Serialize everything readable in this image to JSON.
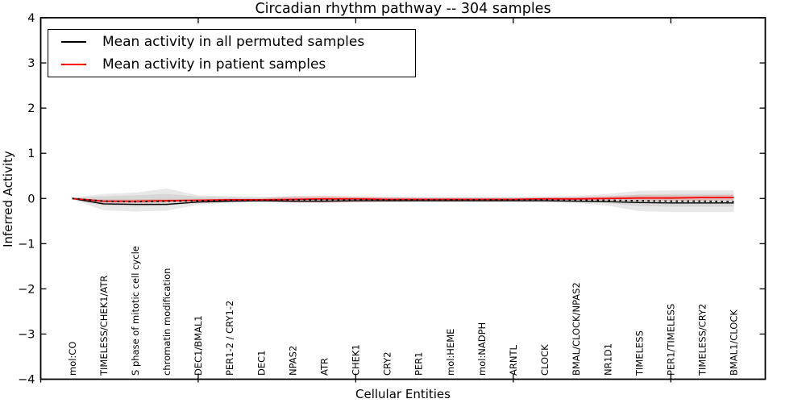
{
  "chart_data": {
    "type": "line",
    "title": "Circadian rhythm pathway -- 304 samples",
    "xlabel": "Cellular Entities",
    "ylabel": "Inferred Activity",
    "ylim": [
      -4,
      4
    ],
    "yticks": [
      4,
      3,
      2,
      1,
      0,
      -1,
      -2,
      -3,
      -4
    ],
    "xlim_indices": [
      -1,
      22
    ],
    "axis_tick_positions": [
      -1,
      4,
      9,
      14,
      19
    ],
    "grid": false,
    "legend_position": "upper left",
    "categories": [
      "mol:CO",
      "TIMELESS/CHEK1/ATR",
      "S phase of mitotic cell cycle",
      "chromatin modification",
      "DEC1/BMAL1",
      "PER1-2 / CRY1-2",
      "DEC1",
      "NPAS2",
      "ATR",
      "CHEK1",
      "CRY2",
      "PER1",
      "mol:HEME",
      "mol:NADPH",
      "ARNTL",
      "CLOCK",
      "BMAL/CLOCK/NPAS2",
      "NR1D1",
      "TIMELESS",
      "PER1/TIMELESS",
      "TIMELESS/CRY2",
      "BMAL1/CLOCK"
    ],
    "series": [
      {
        "name": "Mean activity in all permuted samples",
        "color": "#000000",
        "style": "solid",
        "in_legend": true,
        "values": [
          0.0,
          -0.12,
          -0.13,
          -0.13,
          -0.08,
          -0.06,
          -0.05,
          -0.06,
          -0.06,
          -0.05,
          -0.05,
          -0.05,
          -0.05,
          -0.05,
          -0.05,
          -0.05,
          -0.06,
          -0.07,
          -0.09,
          -0.1,
          -0.1,
          -0.1
        ]
      },
      {
        "name": "Mean activity in patient samples",
        "color": "#ff0000",
        "style": "solid",
        "in_legend": true,
        "values": [
          0.0,
          -0.06,
          -0.06,
          -0.05,
          -0.04,
          -0.03,
          -0.03,
          -0.02,
          -0.01,
          -0.01,
          -0.02,
          -0.02,
          -0.02,
          -0.02,
          -0.02,
          -0.01,
          -0.01,
          0.0,
          0.01,
          0.01,
          0.02,
          0.02
        ]
      },
      {
        "name": "permuted samples dashed overlay",
        "color": "#111111",
        "style": "dashed",
        "in_legend": false,
        "values": [
          0.0,
          -0.06,
          -0.07,
          -0.06,
          -0.05,
          -0.04,
          -0.04,
          -0.03,
          -0.03,
          -0.03,
          -0.03,
          -0.03,
          -0.03,
          -0.03,
          -0.03,
          -0.03,
          -0.04,
          -0.04,
          -0.05,
          -0.06,
          -0.06,
          -0.07
        ]
      }
    ],
    "bands": [
      {
        "name": "permuted-activity-range-outer",
        "color": "rgba(0,0,0,0.09)",
        "upper": [
          0.02,
          0.1,
          0.13,
          0.22,
          0.07,
          0.05,
          0.04,
          0.05,
          0.05,
          0.04,
          0.04,
          0.04,
          0.04,
          0.04,
          0.04,
          0.05,
          0.06,
          0.1,
          0.17,
          0.18,
          0.18,
          0.18
        ],
        "lower": [
          -0.02,
          -0.26,
          -0.29,
          -0.27,
          -0.14,
          -0.09,
          -0.08,
          -0.09,
          -0.09,
          -0.08,
          -0.08,
          -0.08,
          -0.08,
          -0.08,
          -0.08,
          -0.09,
          -0.1,
          -0.16,
          -0.28,
          -0.3,
          -0.3,
          -0.3
        ]
      },
      {
        "name": "permuted-activity-range-inner",
        "color": "rgba(0,0,0,0.07)",
        "upper": [
          0.01,
          0.05,
          0.07,
          0.1,
          0.04,
          0.03,
          0.02,
          0.03,
          0.03,
          0.02,
          0.02,
          0.02,
          0.02,
          0.02,
          0.02,
          0.03,
          0.03,
          0.05,
          0.09,
          0.1,
          0.1,
          0.1
        ],
        "lower": [
          -0.01,
          -0.16,
          -0.18,
          -0.16,
          -0.09,
          -0.06,
          -0.05,
          -0.06,
          -0.06,
          -0.05,
          -0.05,
          -0.05,
          -0.05,
          -0.05,
          -0.05,
          -0.06,
          -0.06,
          -0.1,
          -0.17,
          -0.18,
          -0.18,
          -0.18
        ]
      },
      {
        "name": "patient-activity-range",
        "color": "rgba(255,0,0,0.14)",
        "upper": [
          0.01,
          -0.02,
          -0.02,
          -0.01,
          -0.01,
          0.0,
          0.0,
          0.05,
          0.06,
          0.05,
          0.03,
          0.01,
          0.01,
          0.01,
          0.01,
          0.02,
          0.03,
          0.05,
          0.07,
          0.07,
          0.07,
          0.08
        ],
        "lower": [
          -0.01,
          -0.1,
          -0.1,
          -0.09,
          -0.07,
          -0.06,
          -0.06,
          -0.09,
          -0.1,
          -0.09,
          -0.07,
          -0.05,
          -0.05,
          -0.05,
          -0.05,
          -0.04,
          -0.05,
          -0.05,
          -0.05,
          -0.05,
          -0.05,
          -0.04
        ]
      }
    ]
  }
}
